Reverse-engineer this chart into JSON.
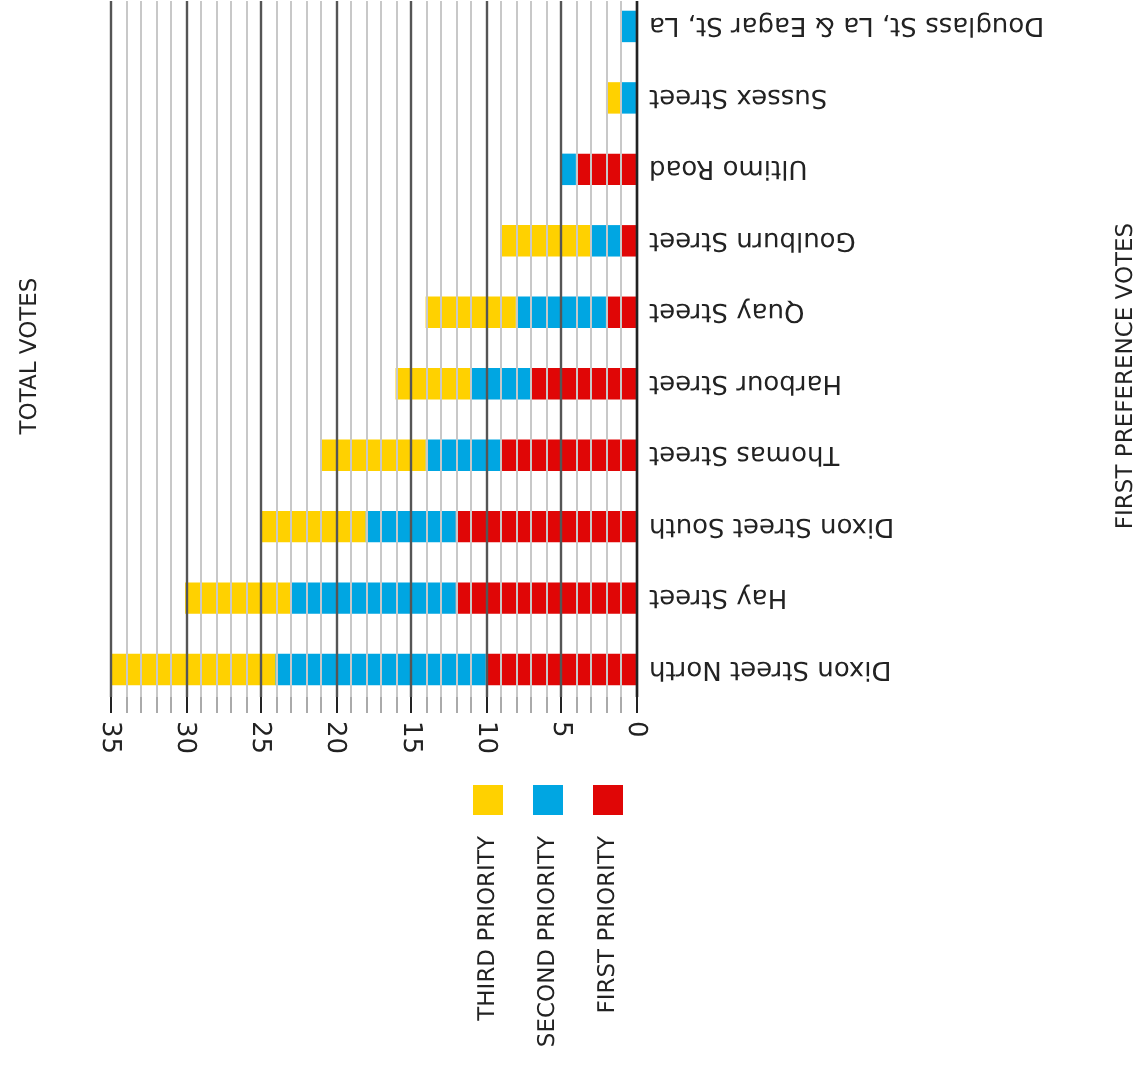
{
  "chart_data": {
    "type": "bar",
    "orientation": "horizontal",
    "stacked": true,
    "categories": [
      "Douglass St, La & Eagar St, La",
      "Sussex Street",
      "Ultimo Road",
      "Goulburn Street",
      "Quay Street",
      "Harbour Street",
      "Thomas Street",
      "Dixon Street South",
      "Hay Street",
      "Dixon Street North"
    ],
    "series": [
      {
        "name": "FIRST PRIORITY",
        "color": "#e00606",
        "values": [
          0,
          0,
          4,
          1,
          2,
          7,
          9,
          12,
          12,
          10
        ]
      },
      {
        "name": "SECOND PRIORITY",
        "color": "#00a6e2",
        "values": [
          1,
          1,
          1,
          2,
          6,
          4,
          5,
          6,
          11,
          14
        ]
      },
      {
        "name": "THIRD PRIORITY",
        "color": "#ffd100",
        "values": [
          0,
          1,
          0,
          6,
          6,
          5,
          7,
          7,
          7,
          11
        ]
      }
    ],
    "xlim": [
      35,
      0
    ],
    "xticks": [
      0,
      {
        "value": 1,
        "label": null
      },
      {
        "value": 2,
        "label": null
      },
      {
        "value": 3,
        "label": null
      },
      {
        "value": 4,
        "label": null
      },
      5,
      {
        "value": 6,
        "label": null
      },
      {
        "value": 7,
        "label": null
      },
      {
        "value": 8,
        "label": null
      },
      {
        "value": 9,
        "label": null
      },
      10,
      {
        "value": 11,
        "label": null
      },
      {
        "value": 12,
        "label": null
      },
      {
        "value": 13,
        "label": null
      },
      {
        "value": 14,
        "label": null
      },
      15,
      {
        "value": 16,
        "label": null
      },
      {
        "value": 17,
        "label": null
      },
      {
        "value": 18,
        "label": null
      },
      {
        "value": 19,
        "label": null
      },
      20,
      {
        "value": 21,
        "label": null
      },
      {
        "value": 22,
        "label": null
      },
      {
        "value": 23,
        "label": null
      },
      {
        "value": 24,
        "label": null
      },
      25,
      {
        "value": 26,
        "label": null
      },
      {
        "value": 27,
        "label": null
      },
      {
        "value": 28,
        "label": null
      },
      {
        "value": 29,
        "label": null
      },
      30,
      {
        "value": 31,
        "label": null
      },
      {
        "value": 32,
        "label": null
      },
      {
        "value": 33,
        "label": null
      },
      {
        "value": 34,
        "label": null
      },
      35
    ],
    "grid": "x",
    "legend": "bottom",
    "annotations": [
      "TOTAL VOTES",
      "FIRST PREFERENCE VOTES"
    ]
  }
}
